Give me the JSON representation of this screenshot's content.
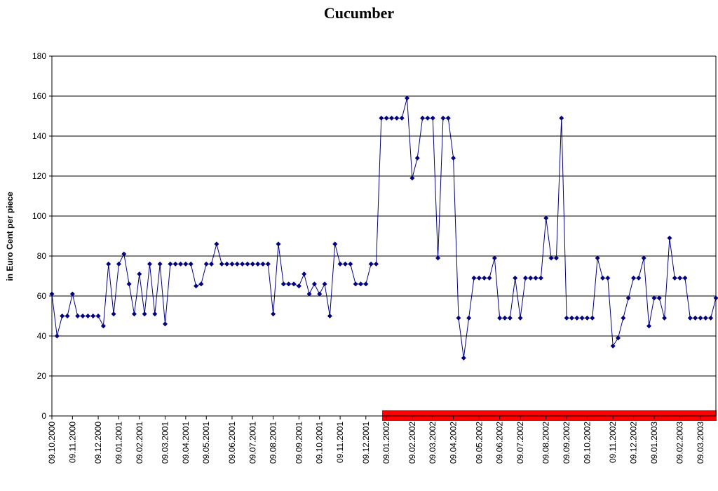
{
  "chart_data": {
    "type": "line",
    "title": "Cucumber",
    "ylabel": "in Euro Cent per piece",
    "categories": [
      "09.10.2000",
      null,
      null,
      null,
      "09.11.2000",
      null,
      null,
      null,
      null,
      "09.12.2000",
      null,
      null,
      null,
      "09.01.2001",
      null,
      null,
      null,
      "09.02.2001",
      null,
      null,
      null,
      null,
      "09.03.2001",
      null,
      null,
      null,
      "09.04.2001",
      null,
      null,
      null,
      "09.05.2001",
      null,
      null,
      null,
      null,
      "09.06.2001",
      null,
      null,
      null,
      "09.07.2001",
      null,
      null,
      null,
      "09.08.2001",
      null,
      null,
      null,
      null,
      "09.09.2001",
      null,
      null,
      null,
      "09.10.2001",
      null,
      null,
      null,
      "09.11.2001",
      null,
      null,
      null,
      null,
      "09.12.2001",
      null,
      null,
      null,
      "09.01.2002",
      null,
      null,
      null,
      null,
      "09.02.2002",
      null,
      null,
      null,
      "09.03.2002",
      null,
      null,
      null,
      "09.04.2002",
      null,
      null,
      null,
      null,
      "09.05.2002",
      null,
      null,
      null,
      "09.06.2002",
      null,
      null,
      null,
      "09.07.2002",
      null,
      null,
      null,
      null,
      "09.08.2002",
      null,
      null,
      null,
      "09.09.2002",
      null,
      null,
      null,
      "09.10.2002",
      null,
      null,
      null,
      null,
      "09.11.2002",
      null,
      null,
      null,
      "09.12.2002",
      null,
      null,
      null,
      "09.01.2003",
      null,
      null,
      null,
      null,
      "09.02.2003",
      null,
      null,
      null,
      "09.03.2003",
      null,
      null,
      null
    ],
    "series": [
      {
        "color": "#000080",
        "values": [
          61,
          40,
          50,
          50,
          61,
          50,
          50,
          50,
          50,
          50,
          45,
          76,
          51,
          76,
          81,
          66,
          51,
          71,
          51,
          76,
          51,
          76,
          46,
          76,
          76,
          76,
          76,
          76,
          65,
          66,
          76,
          76,
          86,
          76,
          76,
          76,
          76,
          76,
          76,
          76,
          76,
          76,
          76,
          51,
          86,
          66,
          66,
          66,
          65,
          71,
          61,
          66,
          61,
          66,
          50,
          86,
          76,
          76,
          76,
          66,
          66,
          66,
          76,
          76,
          149,
          149,
          149,
          149,
          149,
          159,
          119,
          129,
          149,
          149,
          149,
          79,
          149,
          149,
          129,
          49,
          29,
          49,
          69,
          69,
          69,
          69,
          79,
          49,
          49,
          49,
          69,
          49,
          69,
          69,
          69,
          69,
          99,
          79,
          79,
          149,
          49,
          49,
          49,
          49,
          49,
          49,
          79,
          69,
          69,
          35,
          39,
          49,
          59,
          69,
          69,
          79,
          45,
          59,
          59,
          49,
          89,
          69,
          69,
          69,
          49,
          49,
          49,
          49,
          49,
          59
        ]
      }
    ],
    "ylim": [
      0,
      180
    ],
    "yticks": [
      0,
      20,
      40,
      60,
      80,
      100,
      120,
      140,
      160,
      180
    ],
    "grid": true
  }
}
